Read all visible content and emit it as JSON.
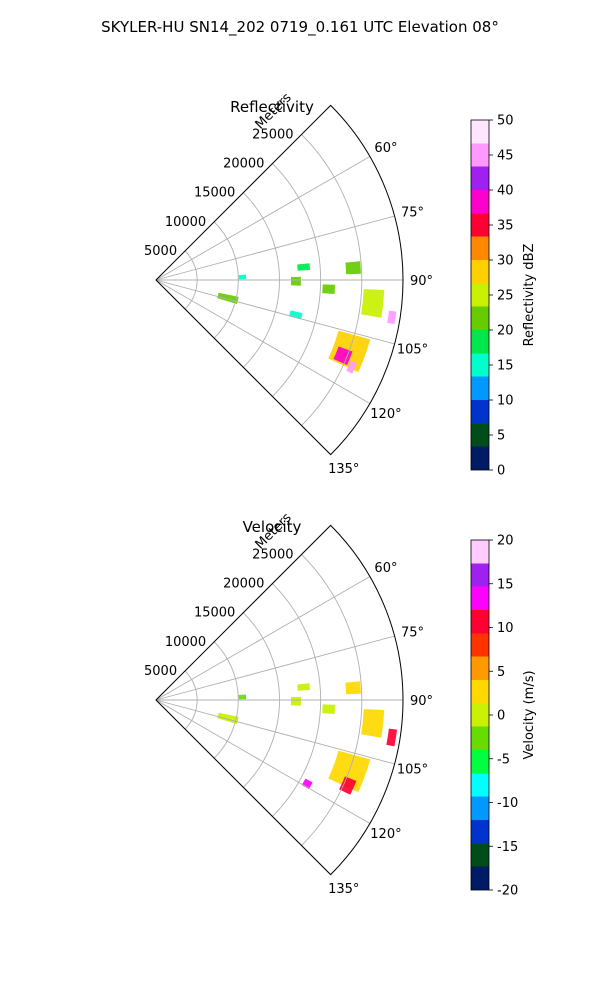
{
  "figure_title": "SKYLER-HU  SN14_202  0719_0.161 UTC Elevation 08°",
  "chart_data": [
    {
      "type": "heatmap",
      "projection": "polar-sector",
      "title": "Reflectivity",
      "radial_label": "Meters",
      "radial_ticks": [
        5000,
        10000,
        15000,
        20000,
        25000
      ],
      "radial_range": [
        0,
        30000
      ],
      "azimuth_range_deg": [
        45,
        135
      ],
      "azimuth_ticks": [
        "60°",
        "75°",
        "90°",
        "105°",
        "120°",
        "135°"
      ],
      "azimuth_tick_values": [
        60,
        75,
        90,
        105,
        120,
        135
      ],
      "grid": true,
      "colorbar": {
        "label": "Reflectivity dBZ",
        "range": [
          0,
          50
        ],
        "ticks": [
          "0",
          "5",
          "10",
          "15",
          "20",
          "25",
          "30",
          "35",
          "40",
          "45",
          "50"
        ],
        "colors": [
          "#001a66",
          "#004d1a",
          "#0033cc",
          "#0099ff",
          "#00ffcc",
          "#00e64d",
          "#66cc00",
          "#c8f000",
          "#ffd000",
          "#ff8800",
          "#ff0033",
          "#ff00cc",
          "#a020f0",
          "#ff99ff",
          "#ffe6ff"
        ]
      },
      "echo_cells": [
        {
          "az": 85.0,
          "r": 18000,
          "dr": 1500,
          "daz": 2.5,
          "value": 18
        },
        {
          "az": 86.5,
          "r": 24000,
          "dr": 1800,
          "daz": 3.5,
          "value": 22
        },
        {
          "az": 88.0,
          "r": 10500,
          "dr": 900,
          "daz": 3.0,
          "value": 14
        },
        {
          "az": 90.5,
          "r": 17000,
          "dr": 1200,
          "daz": 3.5,
          "value": 20
        },
        {
          "az": 93.0,
          "r": 21000,
          "dr": 1500,
          "daz": 3.0,
          "value": 20
        },
        {
          "az": 96.0,
          "r": 26500,
          "dr": 2500,
          "daz": 7.0,
          "value": 24
        },
        {
          "az": 99.0,
          "r": 29000,
          "dr": 900,
          "daz": 3.0,
          "value": 44
        },
        {
          "az": 104.0,
          "r": 9000,
          "dr": 2500,
          "daz": 5.0,
          "value": 20
        },
        {
          "az": 104.0,
          "r": 17500,
          "dr": 1500,
          "daz": 2.5,
          "value": 14
        },
        {
          "az": 110.0,
          "r": 25000,
          "dr": 4000,
          "daz": 9.0,
          "value": 27
        },
        {
          "az": 112.0,
          "r": 24500,
          "dr": 1800,
          "daz": 4.0,
          "value": 37
        },
        {
          "az": 114.0,
          "r": 26000,
          "dr": 800,
          "daz": 3.0,
          "value": 44
        }
      ]
    },
    {
      "type": "heatmap",
      "projection": "polar-sector",
      "title": "Velocity",
      "radial_label": "Meters",
      "radial_ticks": [
        5000,
        10000,
        15000,
        20000,
        25000
      ],
      "radial_range": [
        0,
        30000
      ],
      "azimuth_range_deg": [
        45,
        135
      ],
      "azimuth_ticks": [
        "60°",
        "75°",
        "90°",
        "105°",
        "120°",
        "135°"
      ],
      "azimuth_tick_values": [
        60,
        75,
        90,
        105,
        120,
        135
      ],
      "grid": true,
      "colorbar": {
        "label": "Velocity (m/s)",
        "range": [
          -20,
          20
        ],
        "ticks": [
          "-20",
          "-15",
          "-10",
          "-5",
          "0",
          "5",
          "10",
          "15",
          "20"
        ],
        "colors": [
          "#001a66",
          "#004d1a",
          "#0033cc",
          "#0099ff",
          "#00ffff",
          "#00ff40",
          "#66dd00",
          "#c8f000",
          "#ffd800",
          "#ff9900",
          "#ff3300",
          "#ff0033",
          "#ff00ff",
          "#a020f0",
          "#ffccff"
        ]
      },
      "echo_cells": [
        {
          "az": 85.0,
          "r": 18000,
          "dr": 1500,
          "daz": 2.5,
          "value": 1
        },
        {
          "az": 86.5,
          "r": 24000,
          "dr": 1800,
          "daz": 3.5,
          "value": 2
        },
        {
          "az": 88.0,
          "r": 10500,
          "dr": 900,
          "daz": 3.0,
          "value": -4
        },
        {
          "az": 90.5,
          "r": 17000,
          "dr": 1200,
          "daz": 3.5,
          "value": 1
        },
        {
          "az": 93.0,
          "r": 21000,
          "dr": 1500,
          "daz": 3.0,
          "value": 1
        },
        {
          "az": 96.0,
          "r": 26500,
          "dr": 2500,
          "daz": 7.0,
          "value": 3
        },
        {
          "az": 99.0,
          "r": 29000,
          "dr": 1000,
          "daz": 4.0,
          "value": 11
        },
        {
          "az": 104.0,
          "r": 9000,
          "dr": 2500,
          "daz": 5.0,
          "value": 1
        },
        {
          "az": 110.0,
          "r": 25000,
          "dr": 4000,
          "daz": 9.0,
          "value": 3
        },
        {
          "az": 114.0,
          "r": 25500,
          "dr": 1500,
          "daz": 4.0,
          "value": 11
        },
        {
          "az": 119.0,
          "r": 21000,
          "dr": 1000,
          "daz": 2.5,
          "value": 12
        }
      ]
    }
  ]
}
